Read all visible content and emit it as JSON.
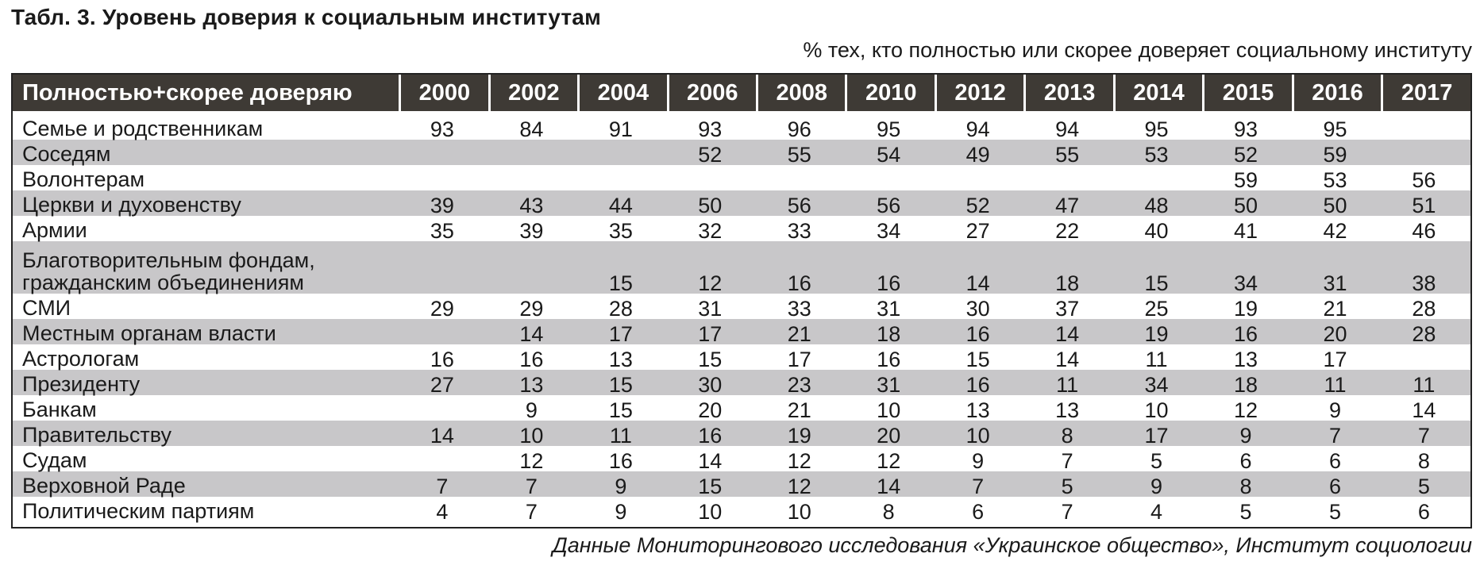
{
  "title": "Табл. 3. Уровень доверия к социальным институтам",
  "subtitle": "% тех, кто полностью или скорее доверяет социальному институту",
  "source": "Данные Мониторингового исследования «Украинское общество», Институт социологии",
  "table": {
    "header_label": "Полностью+скорее доверяю",
    "years": [
      "2000",
      "2002",
      "2004",
      "2006",
      "2008",
      "2010",
      "2012",
      "2013",
      "2014",
      "2015",
      "2016",
      "2017"
    ],
    "rows": [
      {
        "label": "Семье и родственникам",
        "values": [
          "93",
          "84",
          "91",
          "93",
          "96",
          "95",
          "94",
          "94",
          "95",
          "93",
          "95",
          ""
        ]
      },
      {
        "label": "Соседям",
        "values": [
          "",
          "",
          "",
          "52",
          "55",
          "54",
          "49",
          "55",
          "53",
          "52",
          "59",
          ""
        ]
      },
      {
        "label": "Волонтерам",
        "values": [
          "",
          "",
          "",
          "",
          "",
          "",
          "",
          "",
          "",
          "59",
          "53",
          "56"
        ]
      },
      {
        "label": "Церкви и духовенству",
        "values": [
          "39",
          "43",
          "44",
          "50",
          "56",
          "56",
          "52",
          "47",
          "48",
          "50",
          "50",
          "51"
        ]
      },
      {
        "label": "Армии",
        "values": [
          "35",
          "39",
          "35",
          "32",
          "33",
          "34",
          "27",
          "22",
          "40",
          "41",
          "42",
          "46"
        ]
      },
      {
        "label": "Благотворительным фондам, гражданским  объединениям",
        "values": [
          "",
          "",
          "15",
          "12",
          "16",
          "16",
          "14",
          "18",
          "15",
          "34",
          "31",
          "38"
        ]
      },
      {
        "label": "СМИ",
        "values": [
          "29",
          "29",
          "28",
          "31",
          "33",
          "31",
          "30",
          "37",
          "25",
          "19",
          "21",
          "28"
        ]
      },
      {
        "label": "Местным органам власти",
        "values": [
          "",
          "14",
          "17",
          "17",
          "21",
          "18",
          "16",
          "14",
          "19",
          "16",
          "20",
          "28"
        ]
      },
      {
        "label": "Астрологам",
        "values": [
          "16",
          "16",
          "13",
          "15",
          "17",
          "16",
          "15",
          "14",
          "11",
          "13",
          "17",
          ""
        ]
      },
      {
        "label": "Президенту",
        "values": [
          "27",
          "13",
          "15",
          "30",
          "23",
          "31",
          "16",
          "11",
          "34",
          "18",
          "11",
          "11"
        ]
      },
      {
        "label": "Банкам",
        "values": [
          "",
          "9",
          "15",
          "20",
          "21",
          "10",
          "13",
          "13",
          "10",
          "12",
          "9",
          "14"
        ]
      },
      {
        "label": "Правительству",
        "values": [
          "14",
          "10",
          "11",
          "16",
          "19",
          "20",
          "10",
          "8",
          "17",
          "9",
          "7",
          "7"
        ]
      },
      {
        "label": "Судам",
        "values": [
          "",
          "12",
          "16",
          "14",
          "12",
          "12",
          "9",
          "7",
          "5",
          "6",
          "6",
          "8"
        ]
      },
      {
        "label": "Верховной Раде",
        "values": [
          "7",
          "7",
          "9",
          "15",
          "12",
          "14",
          "7",
          "5",
          "9",
          "8",
          "6",
          "5"
        ]
      },
      {
        "label": "Политическим партиям",
        "values": [
          "4",
          "7",
          "9",
          "10",
          "10",
          "8",
          "6",
          "7",
          "4",
          "5",
          "5",
          "6"
        ]
      }
    ]
  }
}
